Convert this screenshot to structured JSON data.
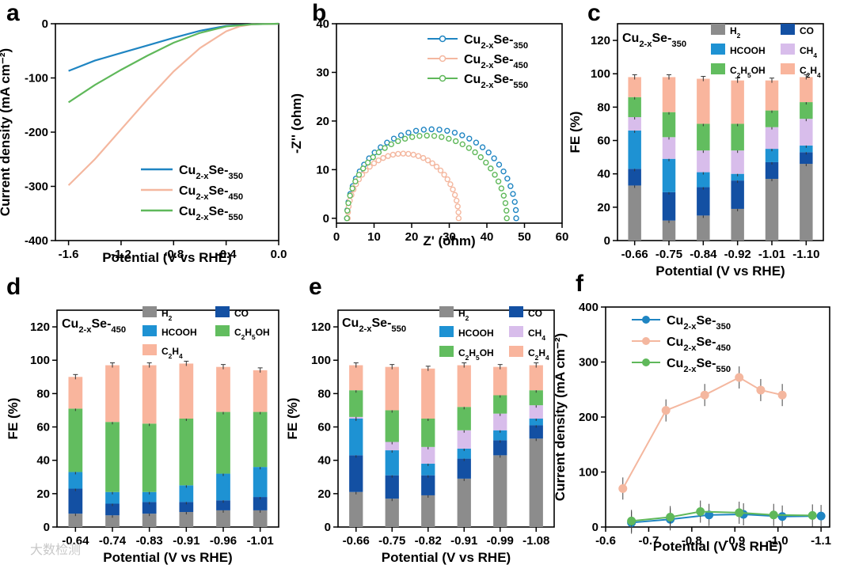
{
  "colors": {
    "s350": "#1f85c2",
    "s450": "#f4b79f",
    "s550": "#5fb85a",
    "H2": "#8c8c8c",
    "CO": "#1350a3",
    "HCOOH": "#1e92d3",
    "CH4": "#d8bdeb",
    "C2H5OH": "#62bd5f",
    "C2H4": "#f9b59d"
  },
  "watermark": "大数检测",
  "chart_data": [
    {
      "panel": "a",
      "type": "line",
      "xlabel": "Potential (V vs RHE)",
      "ylabel": "Current density (mA cm⁻²)",
      "xlim": [
        -1.7,
        0
      ],
      "ylim": [
        -400,
        0
      ],
      "xticks": [
        "-1.6",
        "-1.2",
        "-0.8",
        "-0.4",
        "0.0"
      ],
      "yticks": [
        "0",
        "-100",
        "-200",
        "-300",
        "-400"
      ],
      "legend": "bottom-right",
      "series": [
        {
          "name": "Cu2-xSe-350",
          "key": "s350",
          "x": [
            -1.6,
            -1.4,
            -1.2,
            -1.0,
            -0.8,
            -0.6,
            -0.4,
            -0.2,
            0
          ],
          "y": [
            -87,
            -68,
            -54,
            -40,
            -26,
            -13,
            -4,
            -1,
            0
          ]
        },
        {
          "name": "Cu2-xSe-450",
          "key": "s450",
          "x": [
            -1.6,
            -1.4,
            -1.2,
            -1.0,
            -0.8,
            -0.6,
            -0.4,
            -0.3,
            -0.2,
            0
          ],
          "y": [
            -298,
            -250,
            -195,
            -140,
            -88,
            -45,
            -14,
            -5,
            -1,
            0
          ]
        },
        {
          "name": "Cu2-xSe-550",
          "key": "s550",
          "x": [
            -1.6,
            -1.4,
            -1.2,
            -1.0,
            -0.8,
            -0.6,
            -0.4,
            -0.2,
            0
          ],
          "y": [
            -145,
            -113,
            -85,
            -59,
            -35,
            -17,
            -5,
            -1,
            0
          ]
        }
      ]
    },
    {
      "panel": "b",
      "type": "scatter",
      "xlabel": "Z' (ohm)",
      "ylabel": "-Z'' (ohm)",
      "xlim": [
        0,
        60
      ],
      "ylim": [
        -1,
        40
      ],
      "xticks": [
        "0",
        "10",
        "20",
        "30",
        "40",
        "50",
        "60"
      ],
      "yticks": [
        "0",
        "10",
        "20",
        "30",
        "40"
      ],
      "legend": "top-right",
      "series": [
        {
          "name": "Cu2-xSe-350",
          "key": "s350",
          "R0": 2.8,
          "R1": 47.8,
          "H": 18.3
        },
        {
          "name": "Cu2-xSe-450",
          "key": "s450",
          "R0": 3.0,
          "R1": 32.5,
          "H": 13.3
        },
        {
          "name": "Cu2-xSe-550",
          "key": "s550",
          "R0": 2.8,
          "R1": 45.3,
          "H": 17.0
        }
      ]
    },
    {
      "panel": "c",
      "type": "bar",
      "title": "Cu2-xSe-350",
      "xlabel": "Potential (V vs RHE)",
      "ylabel": "FE (%)",
      "ylim": [
        0,
        130
      ],
      "yticks": [
        "0",
        "20",
        "40",
        "60",
        "80",
        "100",
        "120"
      ],
      "categories": [
        "-0.66",
        "-0.75",
        "-0.84",
        "-0.92",
        "-1.01",
        "-1.10"
      ],
      "series": [
        {
          "name": "H2",
          "key": "H2",
          "values": [
            33,
            12,
            15,
            19,
            37,
            46
          ]
        },
        {
          "name": "CO",
          "key": "CO",
          "values": [
            10,
            17,
            17,
            17,
            10,
            7
          ]
        },
        {
          "name": "HCOOH",
          "key": "HCOOH",
          "values": [
            23,
            20,
            9,
            4,
            8,
            4
          ]
        },
        {
          "name": "CH4",
          "key": "CH4",
          "values": [
            8,
            13,
            13,
            14,
            13,
            16
          ]
        },
        {
          "name": "C2H5OH",
          "key": "C2H5OH",
          "values": [
            12,
            15,
            16,
            16,
            10,
            10
          ]
        },
        {
          "name": "C2H4",
          "key": "C2H4",
          "values": [
            12,
            21,
            27,
            26,
            18,
            15
          ]
        }
      ],
      "legend": [
        "H2",
        "CO",
        "HCOOH",
        "CH4",
        "C2H5OH",
        "C2H4"
      ]
    },
    {
      "panel": "d",
      "type": "bar",
      "title": "Cu2-xSe-450",
      "xlabel": "Potential (V vs RHE)",
      "ylabel": "FE (%)",
      "ylim": [
        0,
        130
      ],
      "yticks": [
        "0",
        "20",
        "40",
        "60",
        "80",
        "100",
        "120"
      ],
      "categories": [
        "-0.64",
        "-0.74",
        "-0.83",
        "-0.91",
        "-0.96",
        "-1.01"
      ],
      "series": [
        {
          "name": "H2",
          "key": "H2",
          "values": [
            8,
            7,
            8,
            9,
            10,
            10
          ]
        },
        {
          "name": "CO",
          "key": "CO",
          "values": [
            15,
            7,
            7,
            6,
            6,
            8
          ]
        },
        {
          "name": "HCOOH",
          "key": "HCOOH",
          "values": [
            10,
            7,
            6,
            10,
            16,
            18
          ]
        },
        {
          "name": "C2H5OH",
          "key": "C2H5OH",
          "values": [
            38,
            42,
            41,
            40,
            37,
            33
          ]
        },
        {
          "name": "C2H4",
          "key": "C2H4",
          "values": [
            19,
            34,
            35,
            33,
            27,
            25
          ]
        }
      ],
      "legend": [
        "H2",
        "CO",
        "HCOOH",
        "C2H5OH",
        "C2H4"
      ]
    },
    {
      "panel": "e",
      "type": "bar",
      "title": "Cu2-xSe-550",
      "xlabel": "Potential (V vs RHE)",
      "ylabel": "FE (%)",
      "ylim": [
        0,
        130
      ],
      "yticks": [
        "0",
        "20",
        "40",
        "60",
        "80",
        "100",
        "120"
      ],
      "categories": [
        "-0.66",
        "-0.75",
        "-0.82",
        "-0.91",
        "-0.99",
        "-1.08"
      ],
      "series": [
        {
          "name": "H2",
          "key": "H2",
          "values": [
            21,
            17,
            19,
            29,
            43,
            53
          ]
        },
        {
          "name": "CO",
          "key": "CO",
          "values": [
            22,
            14,
            12,
            12,
            9,
            8
          ]
        },
        {
          "name": "HCOOH",
          "key": "HCOOH",
          "values": [
            22,
            15,
            7,
            6,
            6,
            4
          ]
        },
        {
          "name": "CH4",
          "key": "CH4",
          "values": [
            1,
            5,
            10,
            11,
            10,
            8
          ]
        },
        {
          "name": "C2H5OH",
          "key": "C2H5OH",
          "values": [
            16,
            19,
            17,
            14,
            11,
            9
          ]
        },
        {
          "name": "C2H4",
          "key": "C2H4",
          "values": [
            15,
            26,
            30,
            25,
            17,
            15
          ]
        }
      ],
      "legend": [
        "H2",
        "CO",
        "HCOOH",
        "CH4",
        "C2H5OH",
        "C2H4"
      ]
    },
    {
      "panel": "f",
      "type": "line",
      "xlabel": "Potential (V vs RHE)",
      "ylabel": "Current density (mA cm⁻²)",
      "xlim": [
        -0.6,
        -1.12
      ],
      "ylim": [
        0,
        400
      ],
      "xticks": [
        "-0.6",
        "-0.7",
        "-0.8",
        "-0.9",
        "-1.0",
        "-1.1"
      ],
      "yticks": [
        "0",
        "100",
        "200",
        "300",
        "400"
      ],
      "legend": "top-left",
      "series": [
        {
          "name": "Cu2-xSe-350",
          "key": "s350",
          "x": [
            -0.66,
            -0.75,
            -0.84,
            -0.92,
            -1.01,
            -1.1
          ],
          "y": [
            8,
            14,
            22,
            23,
            19,
            20
          ]
        },
        {
          "name": "Cu2-xSe-450",
          "key": "s450",
          "x": [
            -0.64,
            -0.74,
            -0.83,
            -0.91,
            -0.96,
            -1.01
          ],
          "y": [
            70,
            212,
            240,
            272,
            249,
            240
          ]
        },
        {
          "name": "Cu2-xSe-550",
          "key": "s550",
          "x": [
            -0.66,
            -0.75,
            -0.82,
            -0.91,
            -0.99,
            -1.08
          ],
          "y": [
            11,
            18,
            28,
            26,
            22,
            21
          ]
        }
      ]
    }
  ]
}
